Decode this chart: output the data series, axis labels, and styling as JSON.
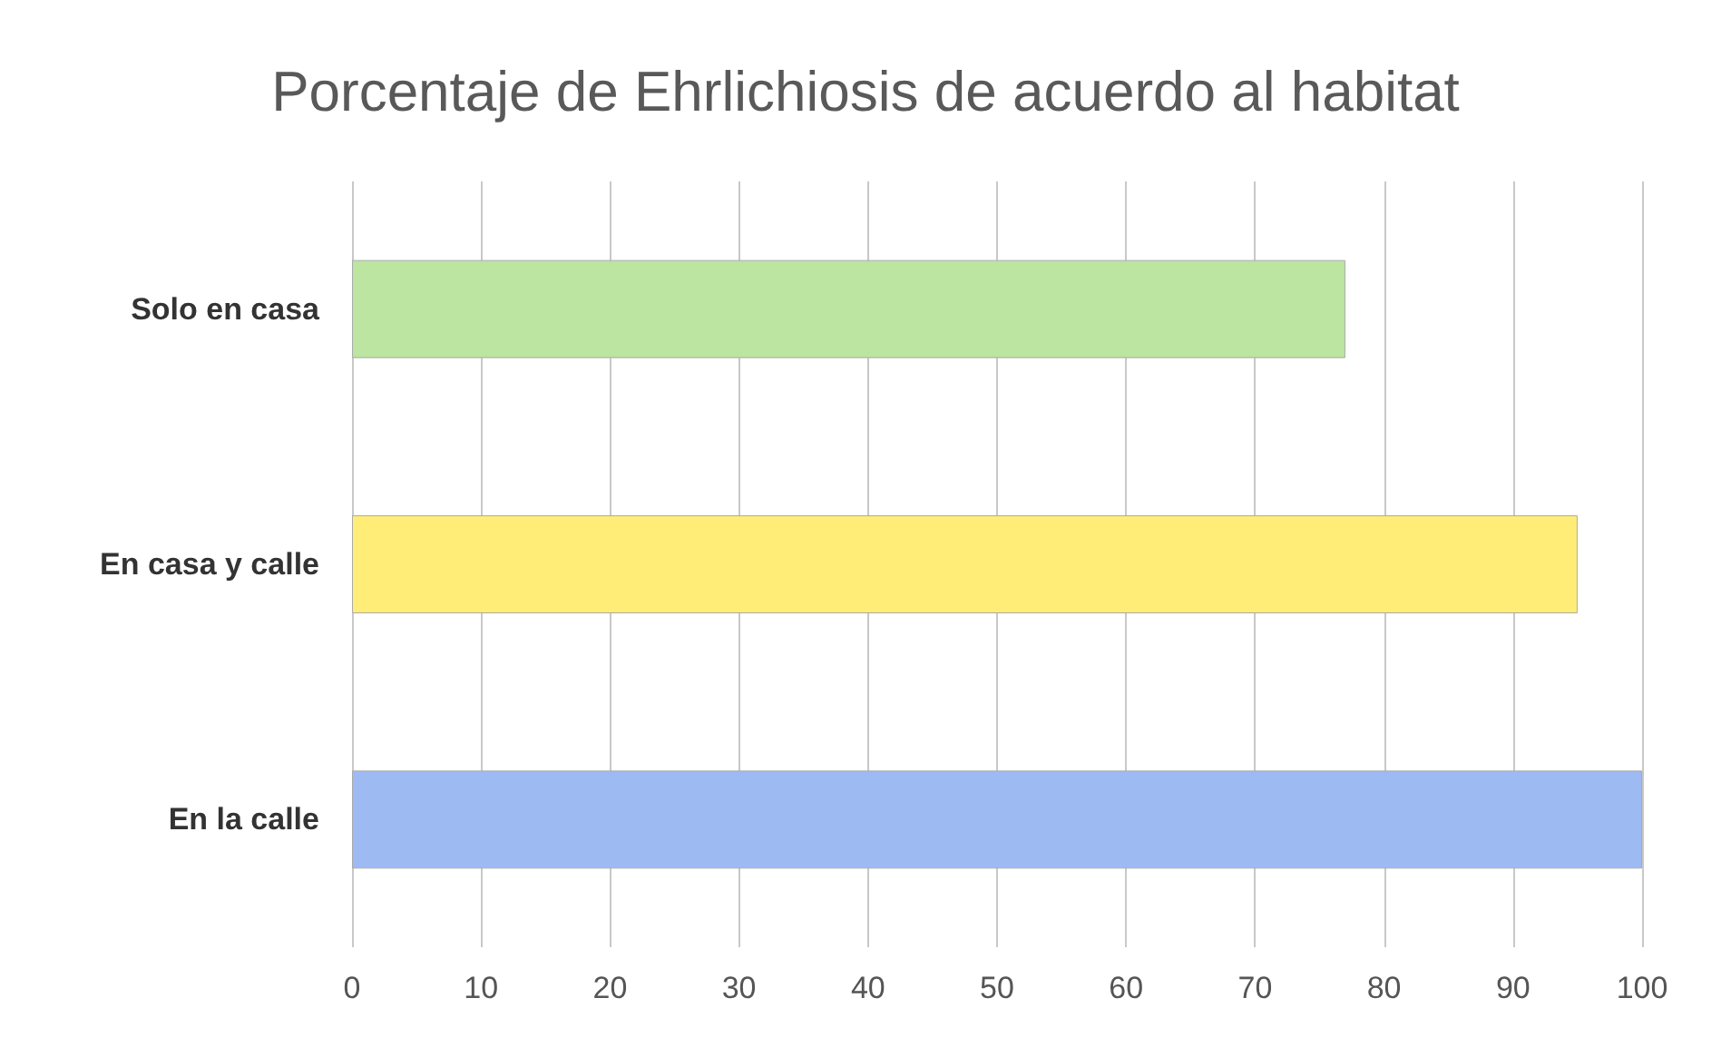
{
  "chart_data": {
    "type": "bar",
    "orientation": "horizontal",
    "title": "Porcentaje de Ehrlichiosis de acuerdo al habitat",
    "categories": [
      "Solo en casa",
      "En casa y calle",
      "En la calle"
    ],
    "values": [
      77,
      95,
      100
    ],
    "colors": [
      "#bbe5a0",
      "#ffed78",
      "#9dbaf2"
    ],
    "xlim": [
      0,
      100
    ],
    "xticks": [
      0,
      10,
      20,
      30,
      40,
      50,
      60,
      70,
      80,
      90,
      100
    ],
    "grid": "x"
  }
}
